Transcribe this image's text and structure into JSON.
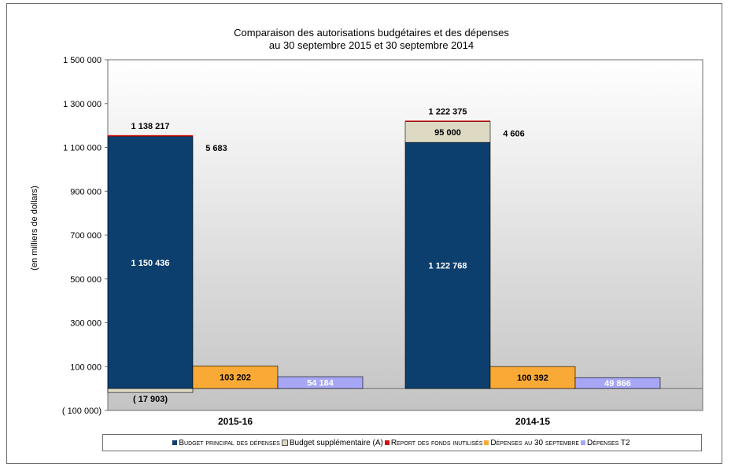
{
  "chart_data": {
    "type": "bar",
    "title_line1": "Comparaison des autorisations budgétaires et des dépenses",
    "title_line2": "au 30 septembre  2015 et 30 septembre 2014",
    "ylabel": "(en milliers de dollars)",
    "xlabel": "",
    "ylim": [
      -100000,
      1500000
    ],
    "yticks": [
      -100000,
      100000,
      300000,
      500000,
      700000,
      900000,
      1100000,
      1300000,
      1500000
    ],
    "ytick_labels": [
      "( 100 000)",
      "100 000",
      "300 000",
      "500 000",
      "700 000",
      "900 000",
      "1 100 000",
      "1 300 000",
      "1 500 000"
    ],
    "categories": [
      "2015-16",
      "2014-15"
    ],
    "stacked_bar": {
      "budget_principal": [
        1150436,
        1122768
      ],
      "budget_supplementaire": [
        -17903,
        95000
      ],
      "report_fonds": [
        5683,
        4606
      ],
      "total_labels": [
        "1 138 217",
        "1 222 375"
      ]
    },
    "depenses_30_septembre": [
      103202,
      100392
    ],
    "depenses_t2": [
      54184,
      49866
    ],
    "data_labels": {
      "budget_principal": [
        "1 150 436",
        "1 122 768"
      ],
      "budget_supplementaire": [
        "( 17 903)",
        "95 000"
      ],
      "report_fonds": [
        "5 683",
        "4 606"
      ],
      "depenses_30_septembre": [
        "103 202",
        "100 392"
      ],
      "depenses_t2": [
        "54 184",
        "49 866"
      ]
    },
    "legend": [
      {
        "label": "Budget principal des dépenses",
        "smallcaps": true,
        "color": "#0c3f6e"
      },
      {
        "label": "Budget supplémentaire (A)",
        "smallcaps": false,
        "color": "#ddd9c3"
      },
      {
        "label": "Report des fonds inutilisés",
        "smallcaps": true,
        "color": "#d2110e"
      },
      {
        "label": "Dépenses au 30 septembre",
        "smallcaps": true,
        "color": "#f9a935"
      },
      {
        "label": "Dépenses T2",
        "smallcaps": true,
        "color": "#a6a6f4"
      }
    ],
    "grid": false,
    "legend_position": "bottom"
  }
}
